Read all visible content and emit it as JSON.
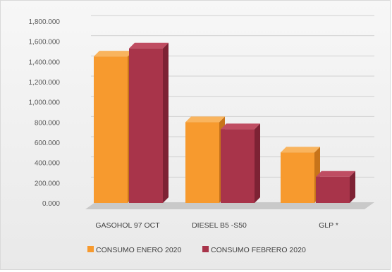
{
  "colors": {
    "enero": "#f79a2e",
    "enero_top": "#f9b45e",
    "enero_side": "#c7741a",
    "febrero": "#a8344a",
    "febrero_top": "#bf4d62",
    "febrero_side": "#7d2234",
    "floor": "#c9c9c9",
    "grid": "#d0d0d0"
  },
  "chart_data": {
    "type": "bar",
    "categories": [
      "GASOHOL 97 OCT",
      "DIESEL B5 -S50",
      "GLP *"
    ],
    "series": [
      {
        "name": "CONSUMO ENERO 2020",
        "values": [
          1450000,
          800000,
          500000
        ]
      },
      {
        "name": "CONSUMO FEBRERO 2020",
        "values": [
          1530000,
          730000,
          260000
        ]
      }
    ],
    "yticks": [
      "0.000",
      "200.000",
      "400.000",
      "600.000",
      "800.000",
      "1,000.000",
      "1,200.000",
      "1,400.000",
      "1,600.000",
      "1,800.000"
    ],
    "ylim": [
      0,
      1800000
    ],
    "grid": true,
    "legend": "bottom",
    "title": "",
    "xlabel": "",
    "ylabel": ""
  }
}
